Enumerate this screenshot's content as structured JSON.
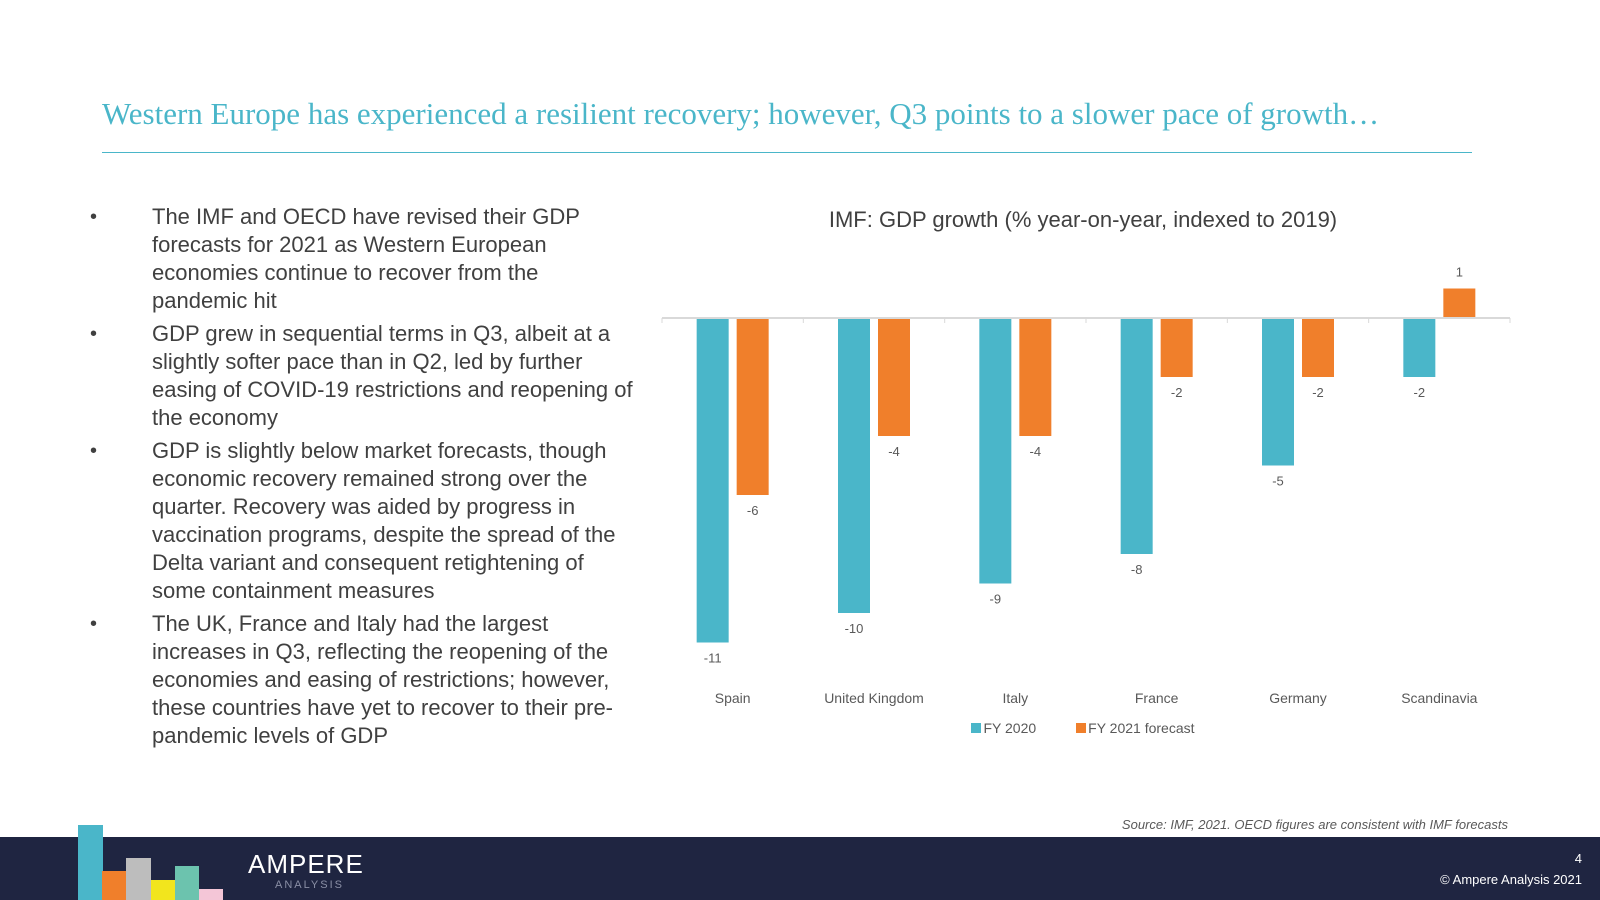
{
  "slide": {
    "title": "Western Europe has experienced a resilient recovery; however, Q3 points to a slower pace of growth…",
    "bullet_marker": "•",
    "bullets": [
      "The IMF and OECD have revised their GDP forecasts for 2021 as Western European economies continue to recover from the pandemic hit",
      "GDP grew in sequential terms in Q3, albeit at a slightly softer pace than in Q2, led by further easing of COVID-19 restrictions and reopening of the economy",
      "GDP is slightly below market forecasts, though economic recovery remained strong over the quarter. Recovery was aided by progress in vaccination programs, despite the spread of the Delta variant and consequent retightening of some containment measures",
      "The UK, France and Italy had the largest increases in Q3, reflecting the reopening of the economies and easing of restrictions; however, these countries have yet to recover to their pre-pandemic levels of GDP"
    ],
    "source": "Source: IMF, 2021. OECD figures are consistent with IMF forecasts"
  },
  "footer": {
    "logo_text": "AMPERE",
    "logo_sub": "ANALYSIS",
    "page_number": "4",
    "copyright": "© Ampere Analysis 2021",
    "logo_colors": [
      "#4ab6c9",
      "#f07f2b",
      "#bdbdbd",
      "#f2e51d",
      "#6cc3ae",
      "#f4c6d7"
    ]
  },
  "chart_data": {
    "type": "bar",
    "title": "IMF: GDP growth (% year-on-year, indexed to 2019)",
    "categories": [
      "Spain",
      "United Kingdom",
      "Italy",
      "France",
      "Germany",
      "Scandinavia"
    ],
    "series": [
      {
        "name": "FY 2020",
        "color": "#4ab6c9",
        "values": [
          -11,
          -10,
          -9,
          -8,
          -5,
          -2
        ]
      },
      {
        "name": "FY 2021 forecast",
        "color": "#f07f2b",
        "values": [
          -6,
          -4,
          -4,
          -2,
          -2,
          1
        ]
      }
    ],
    "xlabel": "",
    "ylabel": "",
    "grid": false,
    "legend": "bottom"
  }
}
